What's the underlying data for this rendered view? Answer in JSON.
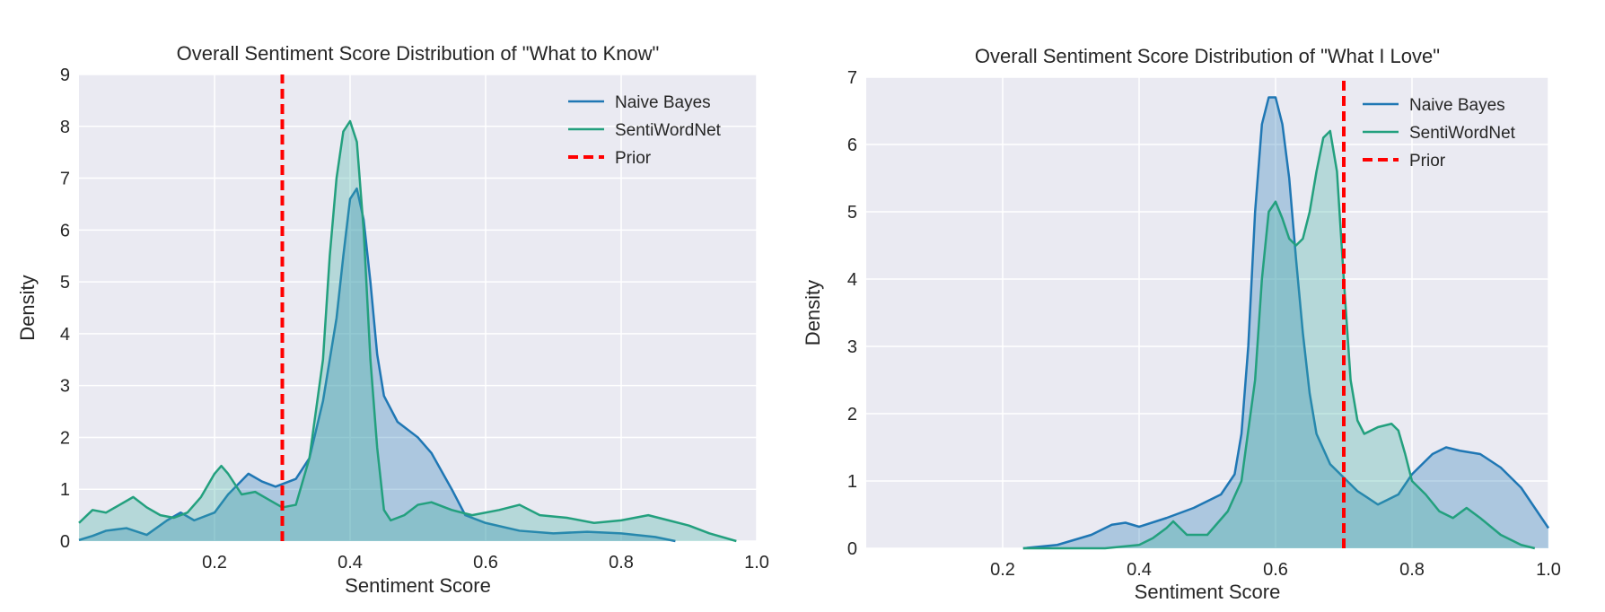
{
  "chart_data": [
    {
      "type": "area",
      "title": "Overall Sentiment Score Distribution of \"What to Know\"",
      "xlabel": "Sentiment Score",
      "ylabel": "Density",
      "xlim": [
        0.0,
        1.0
      ],
      "ylim": [
        0,
        9
      ],
      "xticks": [
        0.2,
        0.4,
        0.6,
        0.8,
        1.0
      ],
      "xtick_labels": [
        "0.2",
        "0.4",
        "0.6",
        "0.8",
        "1.0"
      ],
      "yticks": [
        0,
        1,
        2,
        3,
        4,
        5,
        6,
        7,
        8,
        9
      ],
      "ytick_labels": [
        "0",
        "1",
        "2",
        "3",
        "4",
        "5",
        "6",
        "7",
        "8",
        "9"
      ],
      "grid": true,
      "background": "#eaeaf2",
      "legend_position": "top-right",
      "series": [
        {
          "name": "Naive Bayes",
          "color": "#1f77b4",
          "fill": "#1f77b4",
          "x": [
            0.0,
            0.02,
            0.04,
            0.07,
            0.1,
            0.13,
            0.15,
            0.17,
            0.2,
            0.22,
            0.25,
            0.27,
            0.29,
            0.3,
            0.32,
            0.34,
            0.36,
            0.38,
            0.39,
            0.4,
            0.41,
            0.42,
            0.43,
            0.44,
            0.45,
            0.47,
            0.5,
            0.52,
            0.55,
            0.57,
            0.6,
            0.65,
            0.7,
            0.75,
            0.8,
            0.85,
            0.88
          ],
          "y": [
            0.02,
            0.1,
            0.2,
            0.25,
            0.12,
            0.4,
            0.55,
            0.4,
            0.55,
            0.9,
            1.3,
            1.15,
            1.05,
            1.1,
            1.2,
            1.6,
            2.7,
            4.3,
            5.5,
            6.6,
            6.8,
            6.2,
            5.0,
            3.6,
            2.8,
            2.3,
            2.0,
            1.7,
            1.0,
            0.5,
            0.35,
            0.2,
            0.15,
            0.18,
            0.15,
            0.08,
            0.0
          ]
        },
        {
          "name": "SentiWordNet",
          "color": "#2ca02c",
          "fill": "#3ab09e",
          "x": [
            0.0,
            0.02,
            0.04,
            0.06,
            0.08,
            0.1,
            0.12,
            0.14,
            0.16,
            0.18,
            0.2,
            0.21,
            0.22,
            0.24,
            0.26,
            0.28,
            0.3,
            0.32,
            0.34,
            0.36,
            0.37,
            0.38,
            0.39,
            0.4,
            0.41,
            0.42,
            0.43,
            0.44,
            0.45,
            0.46,
            0.48,
            0.5,
            0.52,
            0.55,
            0.58,
            0.62,
            0.65,
            0.68,
            0.72,
            0.76,
            0.8,
            0.84,
            0.87,
            0.9,
            0.93,
            0.97
          ],
          "y": [
            0.35,
            0.6,
            0.55,
            0.7,
            0.85,
            0.65,
            0.5,
            0.45,
            0.55,
            0.85,
            1.3,
            1.45,
            1.3,
            0.9,
            0.95,
            0.8,
            0.65,
            0.7,
            1.6,
            3.5,
            5.5,
            7.0,
            7.9,
            8.1,
            7.7,
            6.0,
            3.5,
            1.8,
            0.6,
            0.4,
            0.5,
            0.7,
            0.75,
            0.6,
            0.5,
            0.6,
            0.7,
            0.5,
            0.45,
            0.35,
            0.4,
            0.5,
            0.4,
            0.3,
            0.15,
            0.0
          ]
        },
        {
          "name": "Prior",
          "color": "#ff0000",
          "style": "dashed",
          "x": [
            0.3,
            0.3
          ],
          "y": [
            0,
            9
          ]
        }
      ]
    },
    {
      "type": "area",
      "title": "Overall Sentiment Score Distribution of \"What I Love\"",
      "xlabel": "Sentiment Score",
      "ylabel": "Density",
      "xlim": [
        0.0,
        1.0
      ],
      "ylim": [
        0,
        7
      ],
      "xticks": [
        0.2,
        0.4,
        0.6,
        0.8,
        1.0
      ],
      "xtick_labels": [
        "0.2",
        "0.4",
        "0.6",
        "0.8",
        "1.0"
      ],
      "yticks": [
        0,
        1,
        2,
        3,
        4,
        5,
        6,
        7
      ],
      "ytick_labels": [
        "0",
        "1",
        "2",
        "3",
        "4",
        "5",
        "6",
        "7"
      ],
      "grid": true,
      "background": "#eaeaf2",
      "legend_position": "top-right",
      "series": [
        {
          "name": "Naive Bayes",
          "color": "#1f77b4",
          "fill": "#1f77b4",
          "x": [
            0.23,
            0.28,
            0.33,
            0.36,
            0.38,
            0.4,
            0.44,
            0.48,
            0.52,
            0.54,
            0.55,
            0.56,
            0.57,
            0.58,
            0.59,
            0.6,
            0.61,
            0.62,
            0.63,
            0.64,
            0.65,
            0.66,
            0.68,
            0.7,
            0.72,
            0.75,
            0.78,
            0.8,
            0.83,
            0.85,
            0.87,
            0.9,
            0.93,
            0.96,
            1.0
          ],
          "y": [
            0.0,
            0.05,
            0.2,
            0.35,
            0.38,
            0.32,
            0.45,
            0.6,
            0.8,
            1.1,
            1.7,
            3.0,
            5.0,
            6.3,
            6.7,
            6.7,
            6.3,
            5.5,
            4.3,
            3.2,
            2.3,
            1.7,
            1.25,
            1.05,
            0.85,
            0.65,
            0.8,
            1.1,
            1.4,
            1.5,
            1.45,
            1.4,
            1.2,
            0.9,
            0.3
          ]
        },
        {
          "name": "SentiWordNet",
          "color": "#2ca02c",
          "fill": "#3ab09e",
          "x": [
            0.23,
            0.35,
            0.4,
            0.42,
            0.44,
            0.45,
            0.47,
            0.5,
            0.53,
            0.55,
            0.57,
            0.58,
            0.59,
            0.6,
            0.61,
            0.62,
            0.63,
            0.64,
            0.65,
            0.66,
            0.67,
            0.68,
            0.69,
            0.7,
            0.71,
            0.72,
            0.73,
            0.75,
            0.77,
            0.78,
            0.79,
            0.8,
            0.82,
            0.84,
            0.86,
            0.88,
            0.9,
            0.93,
            0.96,
            0.98
          ],
          "y": [
            0.0,
            0.0,
            0.05,
            0.15,
            0.3,
            0.4,
            0.2,
            0.2,
            0.55,
            1.0,
            2.5,
            4.0,
            5.0,
            5.15,
            4.9,
            4.6,
            4.5,
            4.6,
            5.0,
            5.6,
            6.1,
            6.2,
            5.6,
            4.0,
            2.5,
            1.9,
            1.7,
            1.8,
            1.85,
            1.75,
            1.4,
            1.0,
            0.8,
            0.55,
            0.45,
            0.6,
            0.45,
            0.2,
            0.05,
            0.0
          ]
        },
        {
          "name": "Prior",
          "color": "#ff0000",
          "style": "dashed",
          "x": [
            0.7,
            0.7
          ],
          "y": [
            0,
            7
          ]
        }
      ]
    }
  ]
}
